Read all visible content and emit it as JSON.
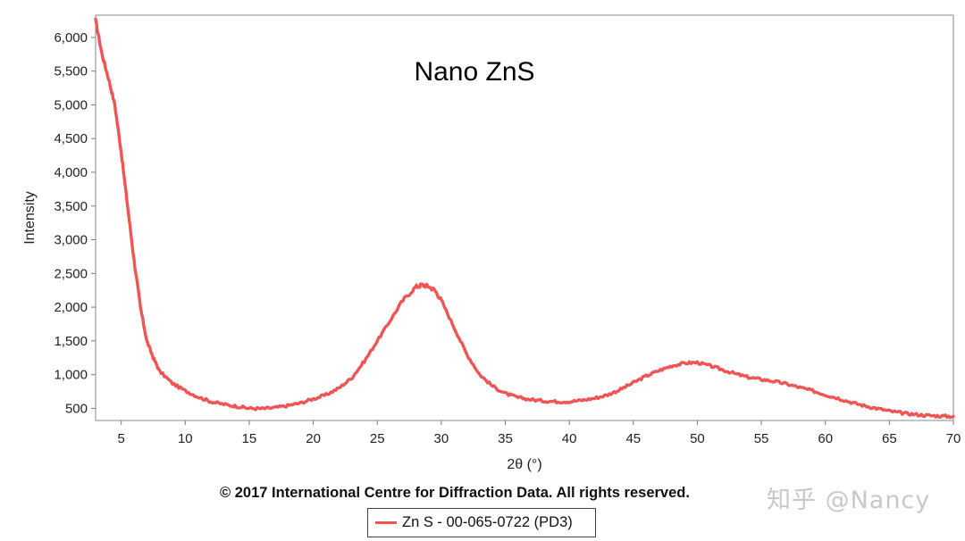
{
  "chart_data": {
    "type": "line",
    "title": "Nano ZnS",
    "xlabel": "2θ (°)",
    "ylabel": "Intensity",
    "xlim": [
      3,
      70
    ],
    "ylim": [
      320,
      6330
    ],
    "xticks": [
      5,
      10,
      15,
      20,
      25,
      30,
      35,
      40,
      45,
      50,
      55,
      60,
      65,
      70
    ],
    "yticks": [
      500,
      1000,
      1500,
      2000,
      2500,
      3000,
      3500,
      4000,
      4500,
      5000,
      5500,
      6000
    ],
    "xtick_labels": [
      "5",
      "10",
      "15",
      "20",
      "25",
      "30",
      "35",
      "40",
      "45",
      "50",
      "55",
      "60",
      "65",
      "70"
    ],
    "ytick_labels": [
      "500",
      "1,000",
      "1,500",
      "2,000",
      "2,500",
      "3,000",
      "3,500",
      "4,000",
      "4,500",
      "5,000",
      "5,500",
      "6,000"
    ],
    "series": [
      {
        "name": "Zn S - 00-065-0722 (PD3)",
        "color": "#f05555",
        "x": [
          3,
          3.5,
          4,
          4.5,
          5,
          5.5,
          6,
          6.5,
          7,
          7.5,
          8,
          9,
          10,
          11,
          12,
          13,
          14,
          15,
          16,
          17,
          18,
          19,
          20,
          21,
          22,
          23,
          24,
          25,
          26,
          27,
          28,
          28.5,
          29,
          29.5,
          30,
          31,
          32,
          33,
          34,
          35,
          36,
          37,
          38,
          39,
          40,
          41,
          42,
          43,
          44,
          45,
          46,
          47,
          48,
          49,
          50,
          51,
          52,
          53,
          54,
          55,
          56,
          57,
          58,
          59,
          60,
          61,
          62,
          63,
          64,
          65,
          66,
          67,
          68,
          69,
          70
        ],
        "values": [
          6250,
          5750,
          5400,
          5000,
          4300,
          3500,
          2700,
          2000,
          1500,
          1250,
          1050,
          870,
          760,
          670,
          600,
          560,
          530,
          500,
          495,
          510,
          540,
          580,
          640,
          700,
          800,
          950,
          1200,
          1500,
          1800,
          2100,
          2300,
          2330,
          2310,
          2250,
          2100,
          1700,
          1300,
          1000,
          830,
          720,
          660,
          630,
          610,
          600,
          600,
          620,
          650,
          700,
          780,
          880,
          980,
          1060,
          1130,
          1170,
          1180,
          1130,
          1070,
          1010,
          960,
          930,
          900,
          860,
          810,
          760,
          700,
          650,
          590,
          540,
          500,
          460,
          430,
          410,
          395,
          385,
          380
        ]
      }
    ]
  },
  "footer": {
    "copyright": "© 2017 International Centre for Diffraction Data. All rights reserved.",
    "watermark": "知乎 @Nancy"
  },
  "legend": {
    "label": "Zn S - 00-065-0722 (PD3)"
  }
}
